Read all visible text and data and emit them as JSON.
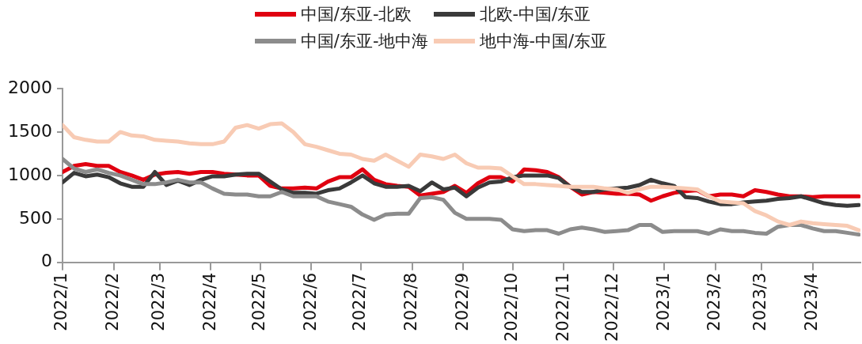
{
  "chart_data": {
    "type": "line",
    "x": [
      "2022-01-01",
      "2022-01-08",
      "2022-01-15",
      "2022-01-22",
      "2022-01-29",
      "2022-02-05",
      "2022-02-12",
      "2022-02-19",
      "2022-02-26",
      "2022-03-05",
      "2022-03-12",
      "2022-03-19",
      "2022-03-26",
      "2022-04-02",
      "2022-04-09",
      "2022-04-16",
      "2022-04-23",
      "2022-04-30",
      "2022-05-07",
      "2022-05-14",
      "2022-05-21",
      "2022-05-28",
      "2022-06-04",
      "2022-06-11",
      "2022-06-18",
      "2022-06-25",
      "2022-07-02",
      "2022-07-09",
      "2022-07-16",
      "2022-07-23",
      "2022-07-30",
      "2022-08-06",
      "2022-08-13",
      "2022-08-20",
      "2022-08-27",
      "2022-09-03",
      "2022-09-10",
      "2022-09-17",
      "2022-09-24",
      "2022-10-01",
      "2022-10-08",
      "2022-10-15",
      "2022-10-22",
      "2022-10-29",
      "2022-11-05",
      "2022-11-12",
      "2022-11-19",
      "2022-11-26",
      "2022-12-03",
      "2022-12-10",
      "2022-12-17",
      "2022-12-24",
      "2022-12-31",
      "2023-01-07",
      "2023-01-14",
      "2023-01-21",
      "2023-01-28",
      "2023-02-04",
      "2023-02-11",
      "2023-02-18",
      "2023-02-25",
      "2023-03-04",
      "2023-03-11",
      "2023-03-18",
      "2023-03-25",
      "2023-04-01",
      "2023-04-08",
      "2023-04-15",
      "2023-04-22",
      "2023-04-29"
    ],
    "series": [
      {
        "name": "中国/东亚-北欧",
        "color": "#e00010",
        "values": [
          1040,
          1110,
          1130,
          1110,
          1110,
          1040,
          1000,
          950,
          1010,
          1030,
          1040,
          1020,
          1040,
          1040,
          1020,
          1010,
          1000,
          1000,
          880,
          850,
          850,
          860,
          850,
          930,
          980,
          980,
          1070,
          950,
          900,
          880,
          870,
          770,
          790,
          810,
          880,
          800,
          910,
          980,
          980,
          930,
          1070,
          1060,
          1040,
          980,
          870,
          780,
          810,
          800,
          790,
          790,
          780,
          710,
          760,
          800,
          820,
          830,
          760,
          780,
          780,
          760,
          830,
          810,
          780,
          760,
          760,
          750,
          760,
          760,
          760,
          760
        ]
      },
      {
        "name": "北欧-中国/东亚",
        "color": "#3a3a3a",
        "values": [
          920,
          1030,
          990,
          1010,
          980,
          910,
          870,
          870,
          1040,
          890,
          940,
          890,
          950,
          990,
          990,
          1010,
          1020,
          1020,
          930,
          840,
          800,
          800,
          790,
          830,
          850,
          920,
          1000,
          910,
          870,
          870,
          880,
          820,
          920,
          840,
          860,
          760,
          860,
          920,
          930,
          980,
          1000,
          1000,
          1000,
          970,
          870,
          810,
          810,
          840,
          850,
          860,
          890,
          950,
          910,
          880,
          750,
          740,
          700,
          670,
          670,
          690,
          700,
          710,
          730,
          740,
          760,
          720,
          680,
          660,
          650,
          660
        ]
      },
      {
        "name": "中国/东亚-地中海",
        "color": "#8c8c8c",
        "values": [
          1190,
          1080,
          1040,
          1070,
          1030,
          1000,
          950,
          900,
          900,
          920,
          950,
          920,
          920,
          850,
          790,
          780,
          780,
          760,
          760,
          810,
          760,
          760,
          760,
          700,
          670,
          640,
          550,
          490,
          550,
          560,
          560,
          740,
          750,
          720,
          570,
          500,
          500,
          500,
          490,
          380,
          360,
          370,
          370,
          330,
          380,
          400,
          380,
          350,
          360,
          370,
          430,
          430,
          350,
          360,
          360,
          360,
          330,
          380,
          360,
          360,
          340,
          330,
          410,
          430,
          430,
          390,
          360,
          360,
          340,
          320
        ]
      },
      {
        "name": "地中海-中国/东亚",
        "color": "#f8cbb4",
        "values": [
          1580,
          1440,
          1410,
          1390,
          1390,
          1500,
          1460,
          1450,
          1410,
          1400,
          1390,
          1370,
          1360,
          1360,
          1390,
          1550,
          1580,
          1540,
          1590,
          1600,
          1500,
          1360,
          1330,
          1290,
          1250,
          1240,
          1190,
          1170,
          1240,
          1170,
          1100,
          1240,
          1220,
          1190,
          1240,
          1140,
          1090,
          1090,
          1080,
          990,
          900,
          900,
          890,
          880,
          870,
          870,
          870,
          850,
          840,
          800,
          840,
          870,
          870,
          860,
          850,
          840,
          760,
          700,
          690,
          680,
          590,
          540,
          470,
          430,
          470,
          450,
          440,
          430,
          420,
          370
        ]
      }
    ],
    "xlim": [
      "2022-01-01",
      "2023-04-30"
    ],
    "xticks": [
      {
        "value": "2022-01-01",
        "label": "2022/1"
      },
      {
        "value": "2022-02-01",
        "label": "2022/2"
      },
      {
        "value": "2022-03-01",
        "label": "2022/3"
      },
      {
        "value": "2022-04-01",
        "label": "2022/4"
      },
      {
        "value": "2022-05-01",
        "label": "2022/5"
      },
      {
        "value": "2022-06-01",
        "label": "2022/6"
      },
      {
        "value": "2022-07-01",
        "label": "2022/7"
      },
      {
        "value": "2022-08-01",
        "label": "2022/8"
      },
      {
        "value": "2022-09-01",
        "label": "2022/9"
      },
      {
        "value": "2022-10-01",
        "label": "2022/10"
      },
      {
        "value": "2022-11-01",
        "label": "2022/11"
      },
      {
        "value": "2022-12-01",
        "label": "2022/12"
      },
      {
        "value": "2023-01-01",
        "label": "2023/1"
      },
      {
        "value": "2023-02-01",
        "label": "2023/2"
      },
      {
        "value": "2023-03-01",
        "label": "2023/3"
      },
      {
        "value": "2023-04-01",
        "label": "2023/4"
      }
    ],
    "ylim": [
      0,
      2000
    ],
    "yticks": [
      0,
      500,
      1000,
      1500,
      2000
    ],
    "grid": false,
    "legend": "top",
    "marker": "none",
    "line_style": "solid"
  }
}
